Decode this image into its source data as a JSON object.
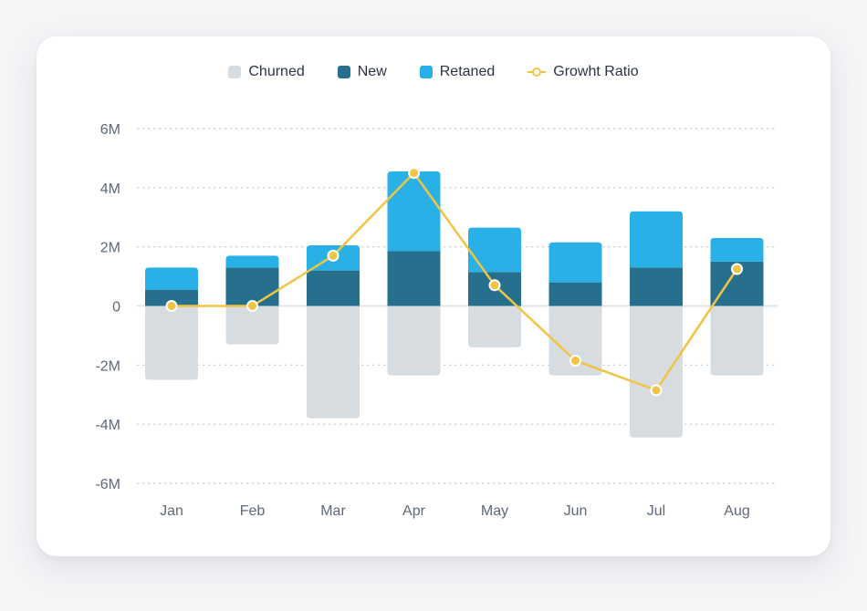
{
  "chart_data": {
    "type": "bar",
    "stacked": true,
    "categories": [
      "Jan",
      "Feb",
      "Mar",
      "Apr",
      "May",
      "Jun",
      "Jul",
      "Aug"
    ],
    "series": [
      {
        "name": "Churned",
        "kind": "bar",
        "color": "#d7dce0",
        "values": [
          -2.5,
          -1.3,
          -3.8,
          -2.35,
          -1.4,
          -2.35,
          -4.45,
          -2.35
        ]
      },
      {
        "name": "New",
        "kind": "bar",
        "color": "#26708d",
        "values": [
          0.55,
          1.3,
          1.2,
          1.85,
          1.15,
          0.8,
          1.3,
          1.5
        ]
      },
      {
        "name": "Retaned",
        "kind": "bar",
        "color": "#29b0e6",
        "values": [
          0.75,
          0.4,
          0.85,
          2.7,
          1.5,
          1.35,
          1.9,
          0.8
        ]
      },
      {
        "name": "Growht Ratio",
        "kind": "line",
        "color": "#f2c443",
        "values": [
          0,
          0,
          1.7,
          4.5,
          0.7,
          -1.85,
          -2.85,
          1.25
        ]
      }
    ],
    "y_ticks": [
      6,
      4,
      2,
      0,
      -2,
      -4,
      -6
    ],
    "y_tick_labels": [
      "6M",
      "4M",
      "2M",
      "0",
      "-2M",
      "-4M",
      "-6M"
    ],
    "ylim": [
      -6,
      6
    ],
    "xlabel": "",
    "ylabel": "",
    "grid": true,
    "legend_position": "top-center"
  }
}
